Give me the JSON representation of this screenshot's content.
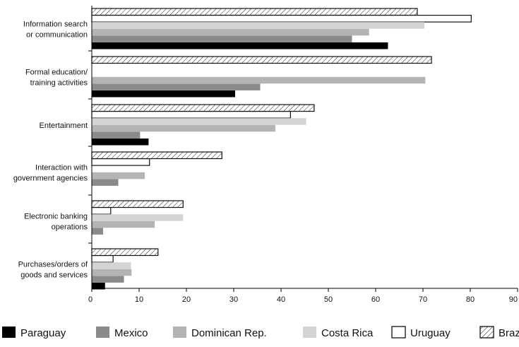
{
  "chart_data": {
    "type": "bar",
    "orientation": "horizontal",
    "categories": [
      [
        "Information search",
        "or communication"
      ],
      [
        "Formal education/",
        "training activities"
      ],
      [
        "Entertainment"
      ],
      [
        "Interaction with",
        "government agencies"
      ],
      [
        "Electronic banking",
        "operations"
      ],
      [
        "Purchases/orders of",
        "goods and services"
      ]
    ],
    "series": [
      {
        "name": "Brazil",
        "style": "hatch",
        "values": [
          68.8,
          71.8,
          47.0,
          27.5,
          19.3,
          14.0
        ]
      },
      {
        "name": "Uruguay",
        "style": "outline",
        "values": [
          80.2,
          0,
          42.0,
          12.2,
          4.0,
          4.5
        ]
      },
      {
        "name": "Costa Rica",
        "color": "#d4d4d4",
        "values": [
          70.3,
          0,
          45.3,
          0,
          19.3,
          8.3
        ]
      },
      {
        "name": "Dominican Rep.",
        "color": "#b4b4b4",
        "values": [
          58.6,
          70.5,
          38.8,
          11.2,
          13.3,
          8.4
        ]
      },
      {
        "name": "Mexico",
        "color": "#8a8a8a",
        "values": [
          55.0,
          35.6,
          10.2,
          5.6,
          2.4,
          6.8
        ]
      },
      {
        "name": "Paraguay",
        "color": "#000000",
        "values": [
          62.6,
          30.3,
          12.0,
          0,
          0,
          2.8
        ]
      }
    ],
    "legend_order": [
      "Paraguay",
      "Mexico",
      "Dominican Rep.",
      "Costa Rica",
      "Uruguay",
      "Brazil"
    ],
    "xticks": [
      0,
      10,
      20,
      30,
      40,
      50,
      60,
      70,
      80,
      90
    ],
    "xlim": [
      0,
      90
    ],
    "xlabel": "",
    "ylabel": "",
    "title": "",
    "grid": false,
    "legend_position": "bottom"
  }
}
